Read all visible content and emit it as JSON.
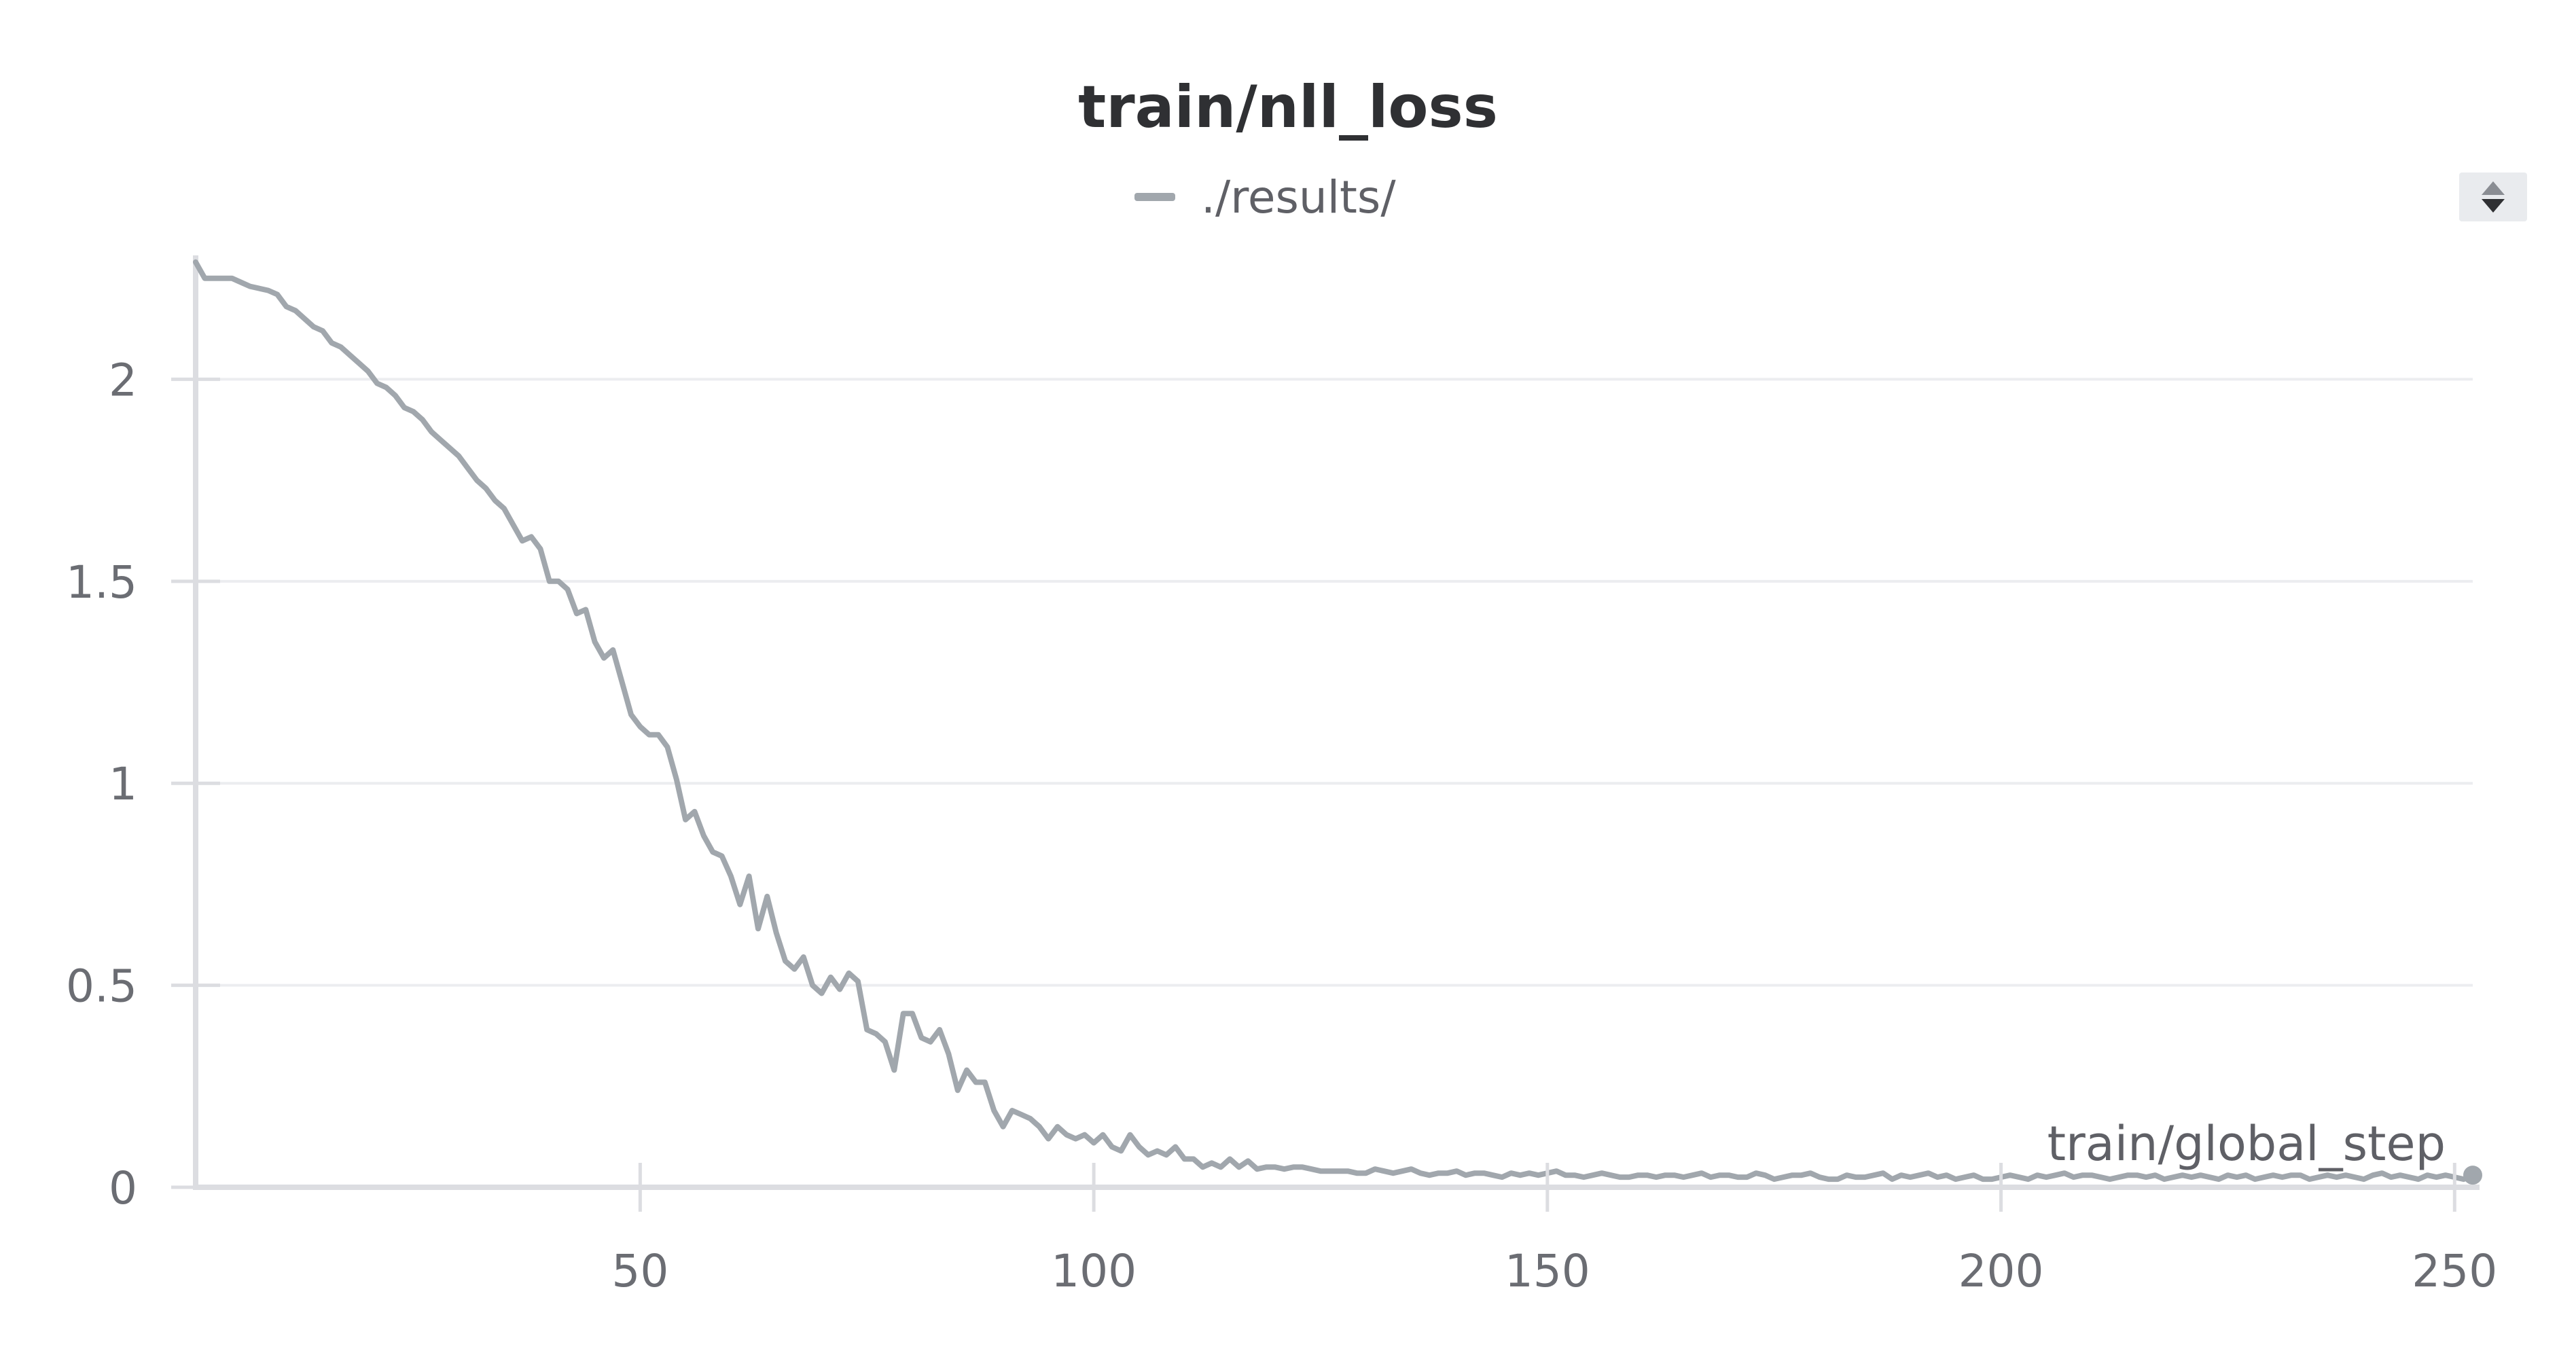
{
  "chart_data": {
    "type": "line",
    "title": "train/nll_loss",
    "xlabel": "train/global_step",
    "ylabel": "",
    "xlim": [
      1,
      252
    ],
    "ylim": [
      0,
      2.3
    ],
    "x_ticks": [
      50,
      100,
      150,
      200,
      250
    ],
    "y_ticks": [
      0,
      0.5,
      1,
      1.5,
      2
    ],
    "grid": true,
    "legend_position": "top-center",
    "series": [
      {
        "name": "./results/",
        "color": "#a1a7ad",
        "points": [
          [
            1,
            2.29
          ],
          [
            2,
            2.25
          ],
          [
            3,
            2.25
          ],
          [
            4,
            2.25
          ],
          [
            5,
            2.25
          ],
          [
            6,
            2.24
          ],
          [
            7,
            2.23
          ],
          [
            8,
            2.225
          ],
          [
            9,
            2.22
          ],
          [
            10,
            2.21
          ],
          [
            11,
            2.18
          ],
          [
            12,
            2.17
          ],
          [
            13,
            2.15
          ],
          [
            14,
            2.13
          ],
          [
            15,
            2.12
          ],
          [
            16,
            2.09
          ],
          [
            17,
            2.08
          ],
          [
            18,
            2.06
          ],
          [
            19,
            2.04
          ],
          [
            20,
            2.02
          ],
          [
            21,
            1.99
          ],
          [
            22,
            1.98
          ],
          [
            23,
            1.96
          ],
          [
            24,
            1.93
          ],
          [
            25,
            1.92
          ],
          [
            26,
            1.9
          ],
          [
            27,
            1.87
          ],
          [
            28,
            1.85
          ],
          [
            29,
            1.83
          ],
          [
            30,
            1.81
          ],
          [
            31,
            1.78
          ],
          [
            32,
            1.75
          ],
          [
            33,
            1.73
          ],
          [
            34,
            1.7
          ],
          [
            35,
            1.68
          ],
          [
            36,
            1.64
          ],
          [
            37,
            1.6
          ],
          [
            38,
            1.61
          ],
          [
            39,
            1.58
          ],
          [
            40,
            1.5
          ],
          [
            41,
            1.5
          ],
          [
            42,
            1.48
          ],
          [
            43,
            1.42
          ],
          [
            44,
            1.43
          ],
          [
            45,
            1.35
          ],
          [
            46,
            1.31
          ],
          [
            47,
            1.33
          ],
          [
            48,
            1.25
          ],
          [
            49,
            1.17
          ],
          [
            50,
            1.14
          ],
          [
            51,
            1.12
          ],
          [
            52,
            1.12
          ],
          [
            53,
            1.09
          ],
          [
            54,
            1.01
          ],
          [
            55,
            0.91
          ],
          [
            56,
            0.93
          ],
          [
            57,
            0.87
          ],
          [
            58,
            0.83
          ],
          [
            59,
            0.82
          ],
          [
            60,
            0.77
          ],
          [
            61,
            0.7
          ],
          [
            62,
            0.77
          ],
          [
            63,
            0.64
          ],
          [
            64,
            0.72
          ],
          [
            65,
            0.63
          ],
          [
            66,
            0.56
          ],
          [
            67,
            0.54
          ],
          [
            68,
            0.57
          ],
          [
            69,
            0.5
          ],
          [
            70,
            0.48
          ],
          [
            71,
            0.52
          ],
          [
            72,
            0.49
          ],
          [
            73,
            0.53
          ],
          [
            74,
            0.51
          ],
          [
            75,
            0.39
          ],
          [
            76,
            0.38
          ],
          [
            77,
            0.36
          ],
          [
            78,
            0.29
          ],
          [
            79,
            0.43
          ],
          [
            80,
            0.43
          ],
          [
            81,
            0.37
          ],
          [
            82,
            0.36
          ],
          [
            83,
            0.39
          ],
          [
            84,
            0.33
          ],
          [
            85,
            0.24
          ],
          [
            86,
            0.29
          ],
          [
            87,
            0.26
          ],
          [
            88,
            0.26
          ],
          [
            89,
            0.19
          ],
          [
            90,
            0.15
          ],
          [
            91,
            0.19
          ],
          [
            92,
            0.18
          ],
          [
            93,
            0.17
          ],
          [
            94,
            0.15
          ],
          [
            95,
            0.12
          ],
          [
            96,
            0.15
          ],
          [
            97,
            0.13
          ],
          [
            98,
            0.12
          ],
          [
            99,
            0.13
          ],
          [
            100,
            0.11
          ],
          [
            101,
            0.13
          ],
          [
            102,
            0.1
          ],
          [
            103,
            0.09
          ],
          [
            104,
            0.13
          ],
          [
            105,
            0.1
          ],
          [
            106,
            0.08
          ],
          [
            107,
            0.09
          ],
          [
            108,
            0.08
          ],
          [
            109,
            0.1
          ],
          [
            110,
            0.07
          ],
          [
            111,
            0.07
          ],
          [
            112,
            0.05
          ],
          [
            113,
            0.06
          ],
          [
            114,
            0.05
          ],
          [
            115,
            0.07
          ],
          [
            116,
            0.05
          ],
          [
            117,
            0.065
          ],
          [
            118,
            0.045
          ],
          [
            119,
            0.05
          ],
          [
            120,
            0.05
          ],
          [
            121,
            0.045
          ],
          [
            122,
            0.05
          ],
          [
            123,
            0.05
          ],
          [
            124,
            0.045
          ],
          [
            125,
            0.04
          ],
          [
            126,
            0.04
          ],
          [
            127,
            0.04
          ],
          [
            128,
            0.04
          ],
          [
            129,
            0.035
          ],
          [
            130,
            0.035
          ],
          [
            131,
            0.045
          ],
          [
            132,
            0.04
          ],
          [
            133,
            0.035
          ],
          [
            134,
            0.04
          ],
          [
            135,
            0.045
          ],
          [
            136,
            0.035
          ],
          [
            137,
            0.03
          ],
          [
            138,
            0.035
          ],
          [
            139,
            0.035
          ],
          [
            140,
            0.04
          ],
          [
            141,
            0.03
          ],
          [
            142,
            0.035
          ],
          [
            143,
            0.035
          ],
          [
            144,
            0.03
          ],
          [
            145,
            0.025
          ],
          [
            146,
            0.035
          ],
          [
            147,
            0.03
          ],
          [
            148,
            0.035
          ],
          [
            149,
            0.03
          ],
          [
            150,
            0.035
          ],
          [
            151,
            0.04
          ],
          [
            152,
            0.03
          ],
          [
            153,
            0.03
          ],
          [
            154,
            0.025
          ],
          [
            155,
            0.03
          ],
          [
            156,
            0.035
          ],
          [
            157,
            0.03
          ],
          [
            158,
            0.025
          ],
          [
            159,
            0.025
          ],
          [
            160,
            0.03
          ],
          [
            161,
            0.03
          ],
          [
            162,
            0.025
          ],
          [
            163,
            0.03
          ],
          [
            164,
            0.03
          ],
          [
            165,
            0.025
          ],
          [
            166,
            0.03
          ],
          [
            167,
            0.035
          ],
          [
            168,
            0.025
          ],
          [
            169,
            0.03
          ],
          [
            170,
            0.03
          ],
          [
            171,
            0.025
          ],
          [
            172,
            0.025
          ],
          [
            173,
            0.035
          ],
          [
            174,
            0.03
          ],
          [
            175,
            0.02
          ],
          [
            176,
            0.025
          ],
          [
            177,
            0.03
          ],
          [
            178,
            0.03
          ],
          [
            179,
            0.035
          ],
          [
            180,
            0.025
          ],
          [
            181,
            0.02
          ],
          [
            182,
            0.02
          ],
          [
            183,
            0.03
          ],
          [
            184,
            0.025
          ],
          [
            185,
            0.025
          ],
          [
            186,
            0.03
          ],
          [
            187,
            0.035
          ],
          [
            188,
            0.02
          ],
          [
            189,
            0.03
          ],
          [
            190,
            0.025
          ],
          [
            191,
            0.03
          ],
          [
            192,
            0.035
          ],
          [
            193,
            0.025
          ],
          [
            194,
            0.03
          ],
          [
            195,
            0.02
          ],
          [
            196,
            0.025
          ],
          [
            197,
            0.03
          ],
          [
            198,
            0.02
          ],
          [
            199,
            0.02
          ],
          [
            200,
            0.025
          ],
          [
            201,
            0.03
          ],
          [
            202,
            0.025
          ],
          [
            203,
            0.02
          ],
          [
            204,
            0.03
          ],
          [
            205,
            0.025
          ],
          [
            206,
            0.03
          ],
          [
            207,
            0.035
          ],
          [
            208,
            0.025
          ],
          [
            209,
            0.03
          ],
          [
            210,
            0.03
          ],
          [
            211,
            0.025
          ],
          [
            212,
            0.02
          ],
          [
            213,
            0.025
          ],
          [
            214,
            0.03
          ],
          [
            215,
            0.03
          ],
          [
            216,
            0.025
          ],
          [
            217,
            0.03
          ],
          [
            218,
            0.02
          ],
          [
            219,
            0.025
          ],
          [
            220,
            0.03
          ],
          [
            221,
            0.025
          ],
          [
            222,
            0.03
          ],
          [
            223,
            0.025
          ],
          [
            224,
            0.02
          ],
          [
            225,
            0.03
          ],
          [
            226,
            0.025
          ],
          [
            227,
            0.03
          ],
          [
            228,
            0.02
          ],
          [
            229,
            0.025
          ],
          [
            230,
            0.03
          ],
          [
            231,
            0.025
          ],
          [
            232,
            0.03
          ],
          [
            233,
            0.03
          ],
          [
            234,
            0.02
          ],
          [
            235,
            0.025
          ],
          [
            236,
            0.03
          ],
          [
            237,
            0.025
          ],
          [
            238,
            0.03
          ],
          [
            239,
            0.025
          ],
          [
            240,
            0.02
          ],
          [
            241,
            0.03
          ],
          [
            242,
            0.035
          ],
          [
            243,
            0.025
          ],
          [
            244,
            0.03
          ],
          [
            245,
            0.025
          ],
          [
            246,
            0.02
          ],
          [
            247,
            0.03
          ],
          [
            248,
            0.025
          ],
          [
            249,
            0.03
          ],
          [
            250,
            0.025
          ],
          [
            251,
            0.02
          ],
          [
            252,
            0.03
          ]
        ]
      }
    ]
  },
  "legend": {
    "label": "./results/"
  },
  "colors": {
    "series": "#a1a7ad",
    "grid": "#ecedf0",
    "axis": "#dcdde1",
    "title": "#2f3033",
    "tick_text": "#6b6d73"
  }
}
